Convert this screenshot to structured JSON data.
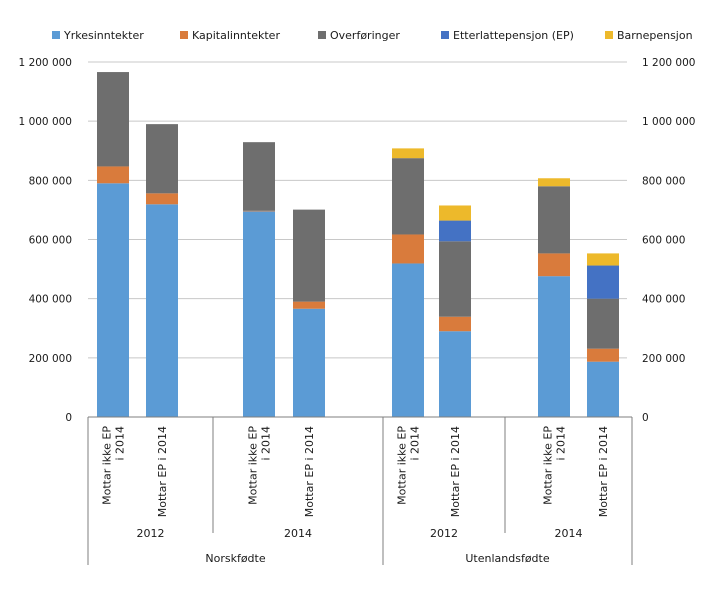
{
  "chart_data": {
    "type": "bar",
    "stacked": true,
    "title": "",
    "xlabel": "",
    "ylabel": "",
    "ylim": [
      0,
      1200000
    ],
    "yticks": [
      0,
      200000,
      400000,
      600000,
      800000,
      1000000,
      1200000
    ],
    "ytick_labels": [
      "0",
      "200 000",
      "400 000",
      "600 000",
      "800 000",
      "1 000 000",
      "1 200 000"
    ],
    "secondary_y_axis": true,
    "grid": true,
    "legend_position": "top",
    "categories": [
      "Mottar ikke EP i 2014",
      "Mottar EP i 2014",
      "Mottar ikke EP i 2014",
      "Mottar EP i 2014",
      "Mottar ikke EP i 2014",
      "Mottar EP i 2014",
      "Mottar ikke EP i 2014",
      "Mottar EP i 2014"
    ],
    "category_lines": [
      [
        "Mottar ikke EP",
        "i 2014"
      ],
      [
        "Mottar EP i 2014"
      ],
      [
        "Mottar ikke EP",
        "i 2014"
      ],
      [
        "Mottar EP i 2014"
      ],
      [
        "Mottar ikke EP",
        "i 2014"
      ],
      [
        "Mottar EP i 2014"
      ],
      [
        "Mottar ikke EP",
        "i 2014"
      ],
      [
        "Mottar EP i 2014"
      ]
    ],
    "year_groups": [
      {
        "label": "2012",
        "start": 0,
        "end": 1
      },
      {
        "label": "2014",
        "start": 2,
        "end": 3
      },
      {
        "label": "2012",
        "start": 4,
        "end": 5
      },
      {
        "label": "2014",
        "start": 6,
        "end": 7
      }
    ],
    "origin_groups": [
      {
        "label": "Norskfødte",
        "start": 0,
        "end": 3
      },
      {
        "label": "Utenlandsfødte",
        "start": 4,
        "end": 7
      }
    ],
    "series": [
      {
        "name": "Yrkesinntekter",
        "color": "#5B9BD5",
        "values": [
          790000,
          719000,
          695000,
          366000,
          519000,
          290000,
          476000,
          187000
        ]
      },
      {
        "name": "Kapitalinntekter",
        "color": "#D97B3C",
        "values": [
          57000,
          37000,
          2000,
          24000,
          98000,
          49000,
          77000,
          44000
        ]
      },
      {
        "name": "Overføringer",
        "color": "#6E6E6E",
        "values": [
          319000,
          234000,
          232000,
          311000,
          258000,
          255000,
          227000,
          169000
        ]
      },
      {
        "name": "Etterlattepensjon (EP)",
        "color": "#4472C4",
        "values": [
          0,
          0,
          0,
          0,
          0,
          70000,
          0,
          112000
        ]
      },
      {
        "name": "Barnepensjon",
        "color": "#EDB92B",
        "values": [
          0,
          0,
          0,
          0,
          33000,
          51000,
          27000,
          41000
        ]
      }
    ]
  }
}
